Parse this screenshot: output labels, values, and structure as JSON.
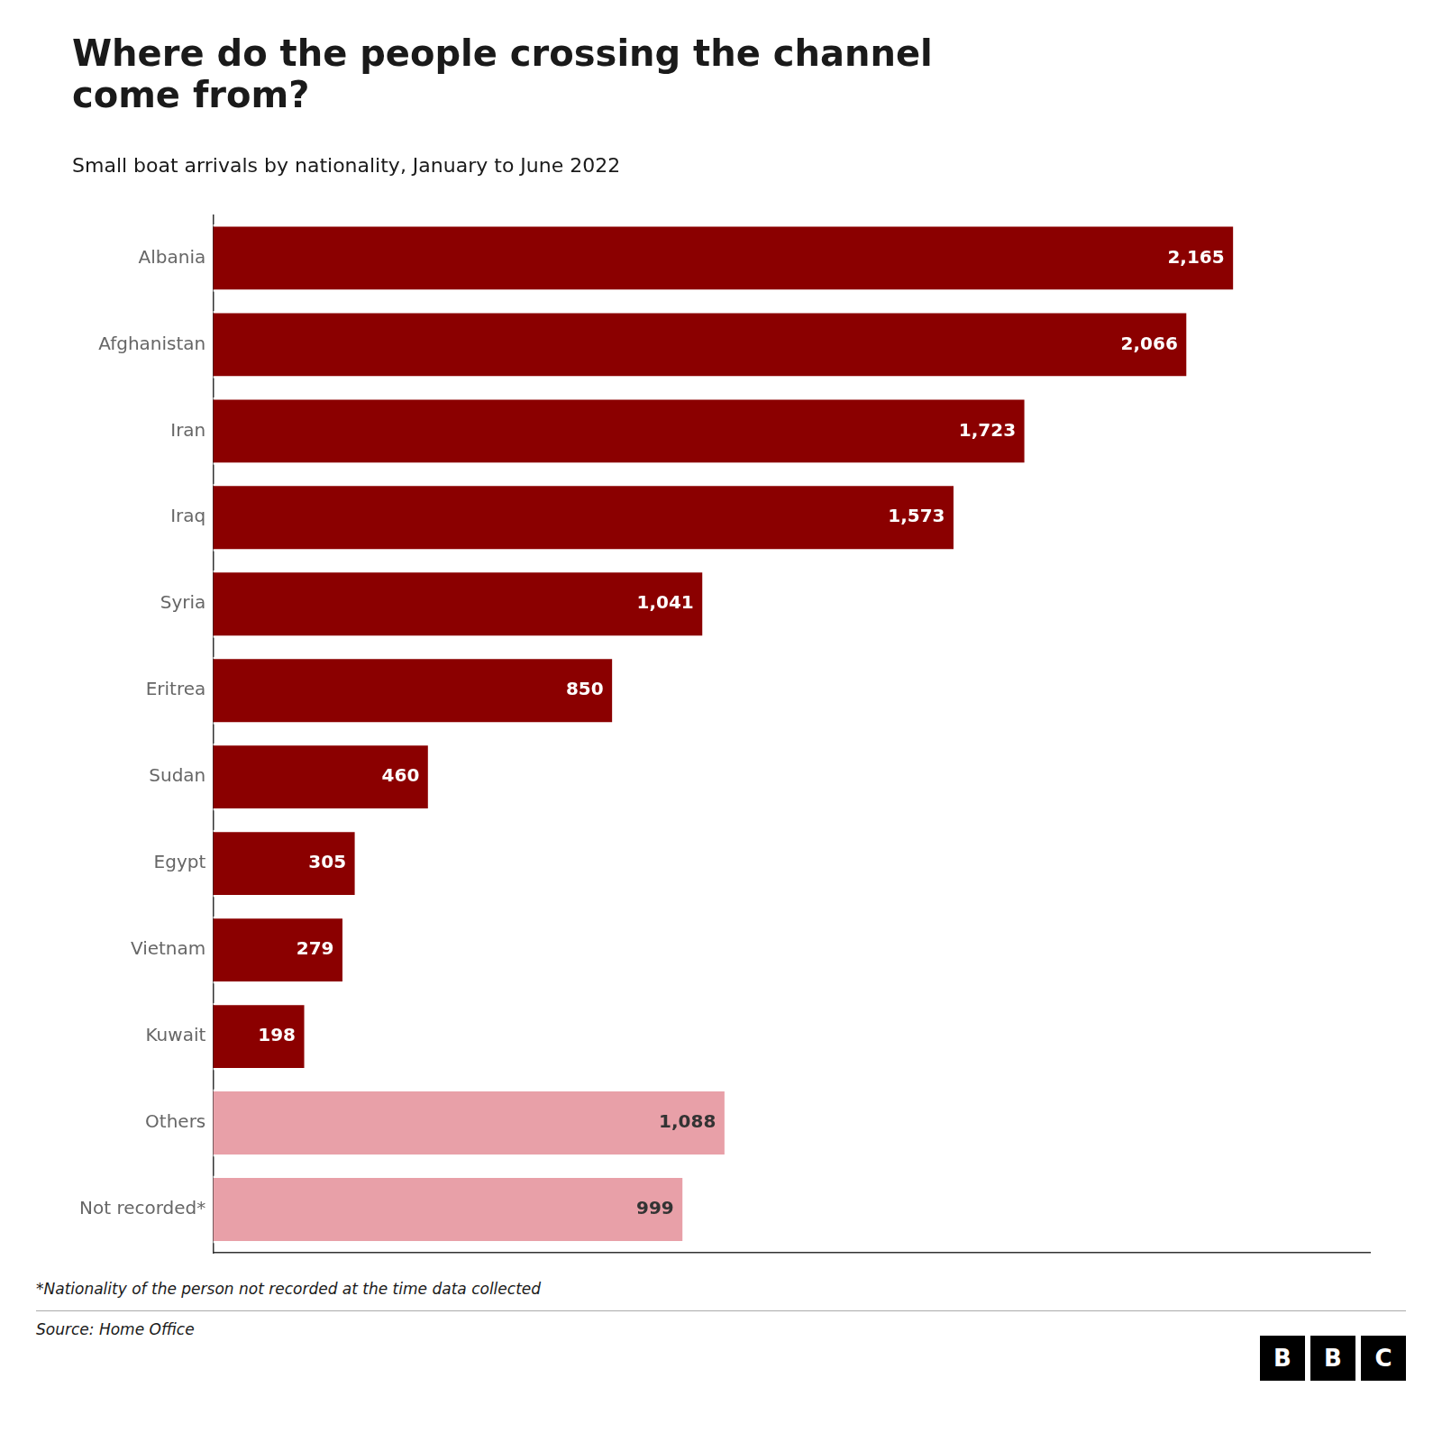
{
  "chart_data": {
    "type": "bar",
    "orientation": "horizontal",
    "title": "Where do the people crossing the channel\ncome from?",
    "subtitle": "Small boat arrivals by nationality, January to June 2022",
    "categories": [
      "Albania",
      "Afghanistan",
      "Iran",
      "Iraq",
      "Syria",
      "Eritrea",
      "Sudan",
      "Egypt",
      "Vietnam",
      "Kuwait",
      "Others",
      "Not recorded*"
    ],
    "values": [
      2165,
      2066,
      1723,
      1573,
      1041,
      850,
      460,
      305,
      279,
      198,
      1088,
      999
    ],
    "value_labels": [
      "2,165",
      "2,066",
      "1,723",
      "1,573",
      "1,041",
      "850",
      "460",
      "305",
      "279",
      "198",
      "1,088",
      "999"
    ],
    "colors": [
      "#8B0000",
      "#8B0000",
      "#8B0000",
      "#8B0000",
      "#8B0000",
      "#8B0000",
      "#8B0000",
      "#8B0000",
      "#8B0000",
      "#8B0000",
      "#E8A0A8",
      "#E8A0A8"
    ],
    "data_labels": true,
    "xlim": [
      0,
      2450
    ],
    "tick_labels": "y",
    "grid": false,
    "annotations": [
      "*Nationality of the person not recorded at the time data collected",
      "Source: Home Office",
      "BBC"
    ]
  }
}
